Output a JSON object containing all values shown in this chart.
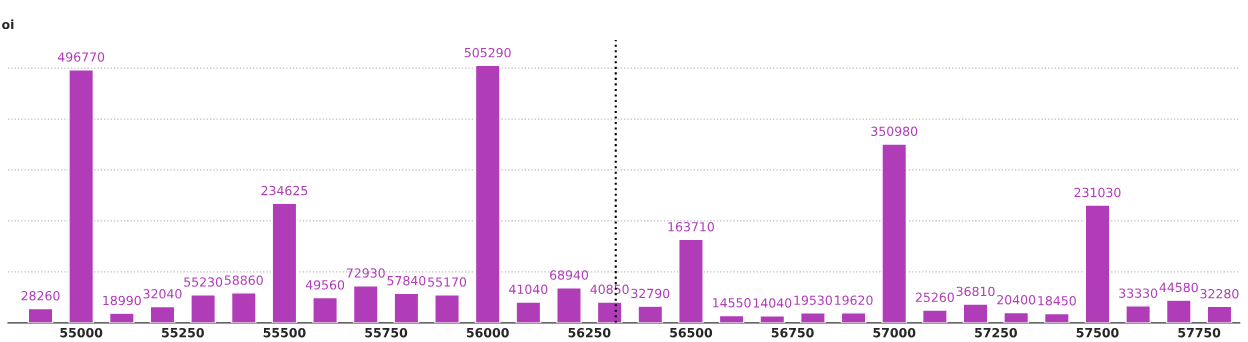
{
  "chart_data": {
    "type": "bar",
    "ylabel": "oi",
    "x": [
      54900,
      55000,
      55100,
      55200,
      55300,
      55400,
      55500,
      55600,
      55700,
      55800,
      55900,
      56000,
      56100,
      56200,
      56300,
      56400,
      56500,
      56600,
      56700,
      56800,
      56900,
      57000,
      57100,
      57200,
      57300,
      57400,
      57500,
      57600,
      57700,
      57800
    ],
    "values": [
      28260,
      496770,
      18990,
      32040,
      55230,
      58860,
      234625,
      49560,
      72930,
      57840,
      55170,
      505290,
      41040,
      68940,
      40850,
      32790,
      163710,
      14550,
      14040,
      19530,
      19620,
      350980,
      25260,
      36810,
      20400,
      18450,
      231030,
      33330,
      44580,
      32280
    ],
    "color": "#b03cb8",
    "data_labels": true,
    "xlim": [
      54820,
      57850
    ],
    "xticks": [
      55000,
      55250,
      55500,
      55750,
      56000,
      56250,
      56500,
      56750,
      57000,
      57250,
      57500,
      57750
    ],
    "ylim": [
      0,
      555000
    ],
    "yticks": [
      {
        "value": 100000,
        "label": null
      },
      {
        "value": 200000,
        "label": null
      },
      {
        "value": 300000,
        "label": null
      },
      {
        "value": 400000,
        "label": null
      },
      {
        "value": 500000,
        "label": null
      }
    ],
    "tick_labels": "x",
    "grid": "y",
    "ref_lines": [
      {
        "axis": "x",
        "value": 56315,
        "color": "#000000",
        "line_style": "dotted"
      }
    ]
  }
}
